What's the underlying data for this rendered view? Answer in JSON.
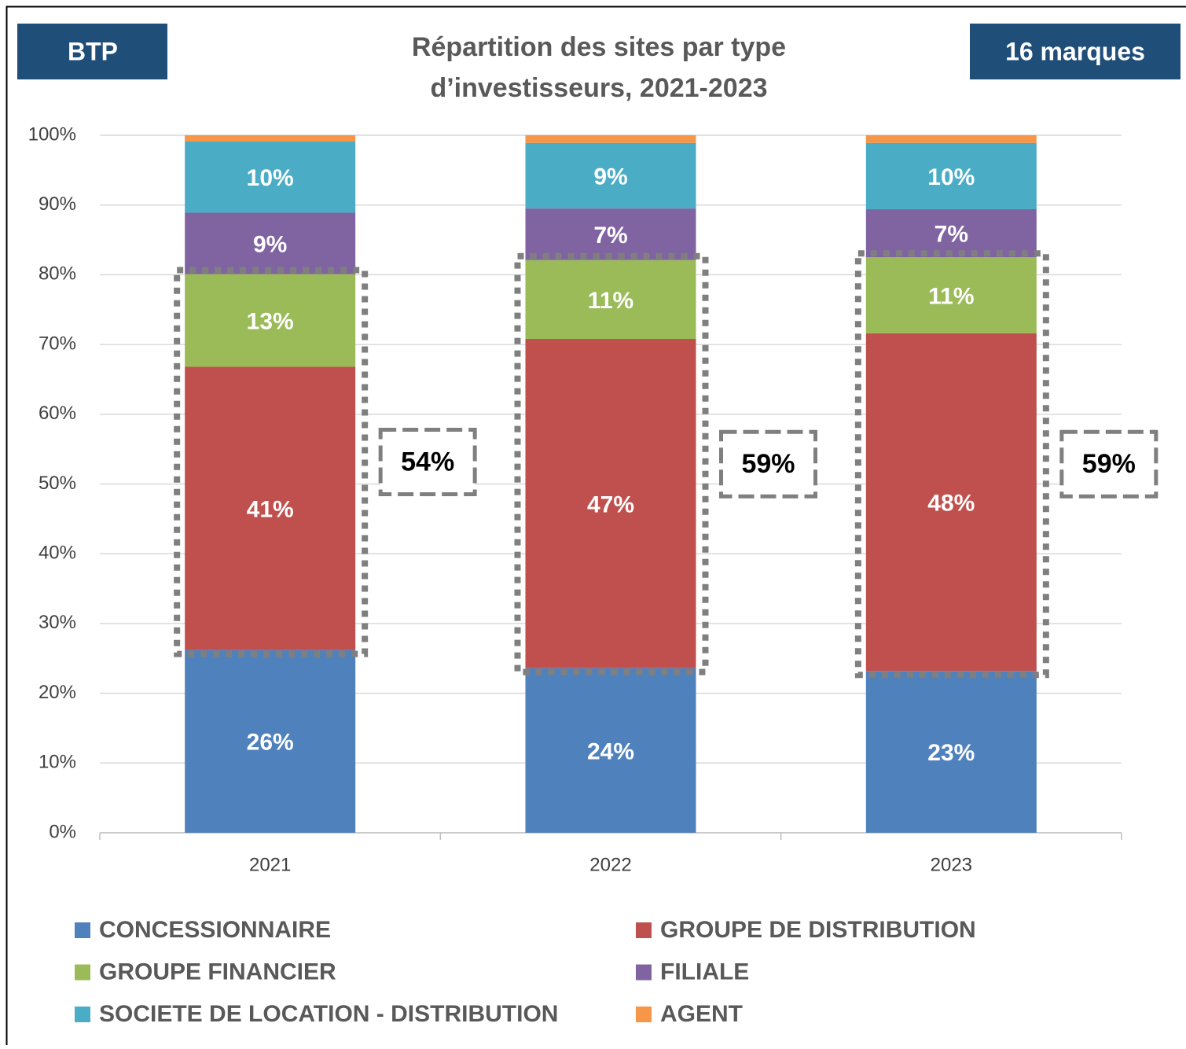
{
  "chart_data": {
    "type": "stacked_bar",
    "title": "Répartition des sites par type d’investisseurs, 2021-2023",
    "left_badge": "BTP",
    "right_badge": "16 marques",
    "categories": [
      "2021",
      "2022",
      "2023"
    ],
    "series": [
      {
        "name": "CONCESSIONNAIRE",
        "color": "#4f81bd",
        "values": [
          26.2,
          23.6,
          23.2
        ],
        "value_labels": [
          "26%",
          "24%",
          "23%"
        ]
      },
      {
        "name": "GROUPE DE DISTRIBUTION",
        "color": "#c0504d",
        "values": [
          40.6,
          47.2,
          48.4
        ],
        "value_labels": [
          "41%",
          "47%",
          "48%"
        ]
      },
      {
        "name": "GROUPE FINANCIER",
        "color": "#9bbb59",
        "values": [
          13.3,
          11.3,
          10.9
        ],
        "value_labels": [
          "13%",
          "11%",
          "11%"
        ]
      },
      {
        "name": "FILIALE",
        "color": "#8064a2",
        "values": [
          8.8,
          7.4,
          6.9
        ],
        "value_labels": [
          "9%",
          "7%",
          "7%"
        ]
      },
      {
        "name": "SOCIETE DE LOCATION - DISTRIBUTION",
        "color": "#4bacc6",
        "values": [
          10.2,
          9.4,
          9.5
        ],
        "value_labels": [
          "10%",
          "9%",
          "10%"
        ]
      },
      {
        "name": "AGENT",
        "color": "#f79646",
        "values": [
          0.9,
          1.1,
          1.1
        ]
      }
    ],
    "annotations": [
      "54%",
      "59%",
      "59%"
    ],
    "ylim": [
      0,
      100
    ],
    "yticks": [
      {
        "value": 0,
        "label": "0%"
      },
      {
        "value": 10,
        "label": "10%"
      },
      {
        "value": 20,
        "label": "20%"
      },
      {
        "value": 30,
        "label": "30%"
      },
      {
        "value": 40,
        "label": "40%"
      },
      {
        "value": 50,
        "label": "50%"
      },
      {
        "value": 60,
        "label": "60%"
      },
      {
        "value": 70,
        "label": "70%"
      },
      {
        "value": 80,
        "label": "80%"
      },
      {
        "value": 90,
        "label": "90%"
      },
      {
        "value": 100,
        "label": "100%"
      }
    ],
    "grid": true
  }
}
